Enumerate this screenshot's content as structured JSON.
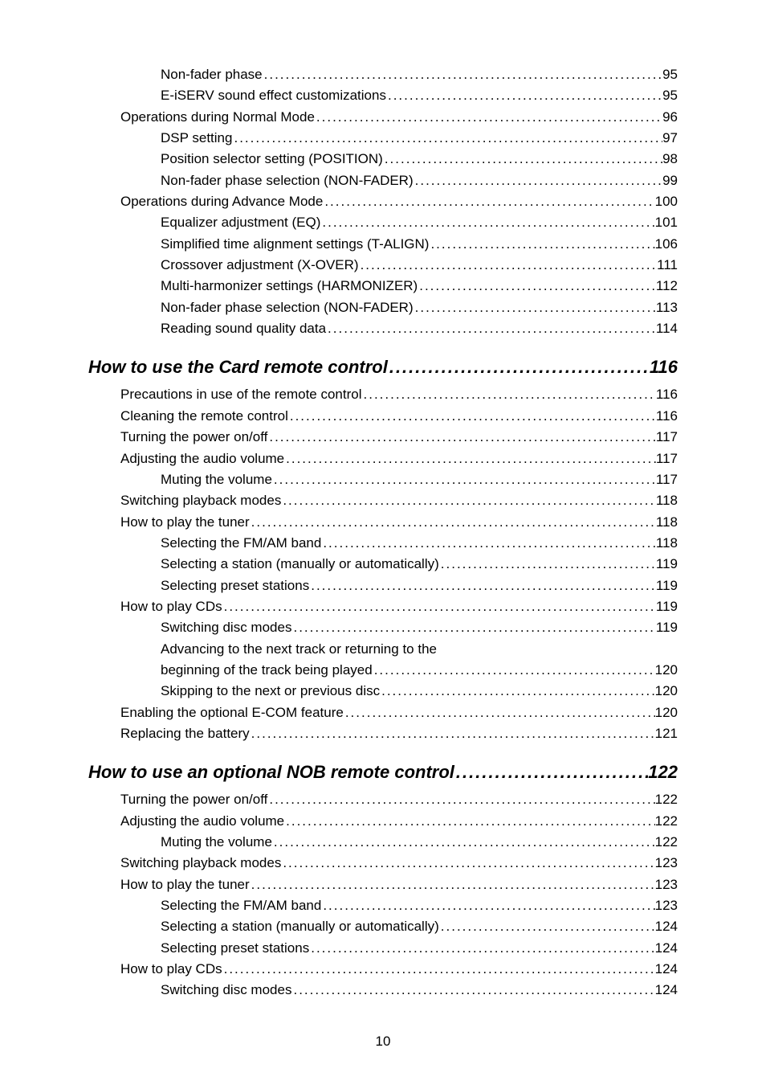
{
  "dots": "....................................................................................................................................................",
  "page_number": "10",
  "blocks": [
    {
      "type": "entries",
      "entries": [
        {
          "label": "Non-fader phase",
          "page": "95",
          "indent": 1,
          "interactable": true
        },
        {
          "label": "E-iSERV sound effect customizations",
          "page": "95",
          "indent": 1,
          "interactable": true
        },
        {
          "label": "Operations during Normal Mode",
          "page": "96",
          "indent": 0,
          "interactable": true
        },
        {
          "label": "DSP setting",
          "page": "97",
          "indent": 1,
          "interactable": true
        },
        {
          "label": "Position selector setting (POSITION)",
          "page": "98",
          "indent": 1,
          "interactable": true
        },
        {
          "label": "Non-fader phase selection (NON-FADER)",
          "page": "99",
          "indent": 1,
          "interactable": true
        },
        {
          "label": "Operations during Advance Mode",
          "page": "100",
          "indent": 0,
          "interactable": true
        },
        {
          "label": "Equalizer adjustment (EQ)",
          "page": "101",
          "indent": 1,
          "interactable": true
        },
        {
          "label": "Simplified time alignment settings (T-ALIGN)",
          "page": "106",
          "indent": 1,
          "interactable": true
        },
        {
          "label": "Crossover adjustment (X-OVER)",
          "page": "111",
          "indent": 1,
          "interactable": true
        },
        {
          "label": "Multi-harmonizer settings (HARMONIZER)",
          "page": "112",
          "indent": 1,
          "interactable": true
        },
        {
          "label": "Non-fader phase selection (NON-FADER)",
          "page": "113",
          "indent": 1,
          "interactable": true
        },
        {
          "label": "Reading sound quality data",
          "page": "114",
          "indent": 1,
          "interactable": true
        }
      ]
    },
    {
      "type": "section",
      "label": "How to use the Card remote control",
      "page": "116"
    },
    {
      "type": "entries",
      "entries": [
        {
          "label": "Precautions in use of the remote control",
          "page": "116",
          "indent": 0,
          "interactable": true
        },
        {
          "label": "Cleaning the remote control",
          "page": "116",
          "indent": 0,
          "interactable": true
        },
        {
          "label": "Turning the power on/off",
          "page": "117",
          "indent": 0,
          "interactable": true
        },
        {
          "label": "Adjusting the audio volume",
          "page": "117",
          "indent": 0,
          "interactable": true
        },
        {
          "label": "Muting the volume",
          "page": "117",
          "indent": 1,
          "interactable": true
        },
        {
          "label": "Switching playback modes",
          "page": "118",
          "indent": 0,
          "interactable": true
        },
        {
          "label": "How to play the tuner",
          "page": "118",
          "indent": 0,
          "interactable": true
        },
        {
          "label": "Selecting the FM/AM band",
          "page": "118",
          "indent": 1,
          "interactable": true
        },
        {
          "label": "Selecting a station (manually or automatically)",
          "page": "119",
          "indent": 1,
          "interactable": true
        },
        {
          "label": "Selecting preset stations",
          "page": "119",
          "indent": 1,
          "interactable": true
        },
        {
          "label": "How to play CDs",
          "page": "119",
          "indent": 0,
          "interactable": true
        },
        {
          "label": "Switching disc modes",
          "page": "119",
          "indent": 1,
          "interactable": true
        },
        {
          "label": "Advancing to the next track or returning to the",
          "page": "",
          "indent": 1,
          "interactable": false,
          "nodots": true
        },
        {
          "label": "beginning of the track being played",
          "page": "120",
          "indent": 1,
          "interactable": true
        },
        {
          "label": "Skipping to the next or previous disc",
          "page": "120",
          "indent": 1,
          "interactable": true
        },
        {
          "label": "Enabling the optional E-COM feature",
          "page": "120",
          "indent": 0,
          "interactable": true
        },
        {
          "label": "Replacing the battery",
          "page": "121",
          "indent": 0,
          "interactable": true
        }
      ]
    },
    {
      "type": "section",
      "label": "How to use an optional NOB remote control",
      "page": "122"
    },
    {
      "type": "entries",
      "entries": [
        {
          "label": "Turning the power on/off",
          "page": "122",
          "indent": 0,
          "interactable": true
        },
        {
          "label": "Adjusting the audio volume",
          "page": "122",
          "indent": 0,
          "interactable": true
        },
        {
          "label": "Muting the volume",
          "page": "122",
          "indent": 1,
          "interactable": true
        },
        {
          "label": "Switching playback modes",
          "page": "123",
          "indent": 0,
          "interactable": true
        },
        {
          "label": "How to play the tuner",
          "page": "123",
          "indent": 0,
          "interactable": true
        },
        {
          "label": "Selecting the FM/AM band",
          "page": "123",
          "indent": 1,
          "interactable": true
        },
        {
          "label": "Selecting a station (manually or automatically)",
          "page": "124",
          "indent": 1,
          "interactable": true
        },
        {
          "label": "Selecting preset stations",
          "page": "124",
          "indent": 1,
          "interactable": true
        },
        {
          "label": "How to play CDs",
          "page": "124",
          "indent": 0,
          "interactable": true
        },
        {
          "label": "Switching disc modes",
          "page": "124",
          "indent": 1,
          "interactable": true
        }
      ]
    }
  ]
}
